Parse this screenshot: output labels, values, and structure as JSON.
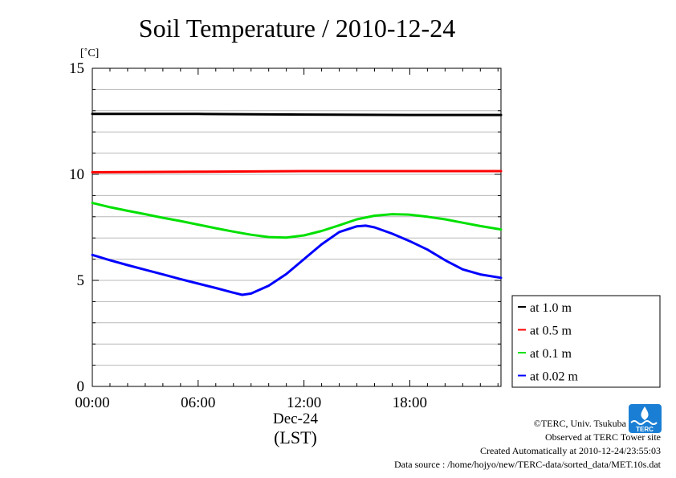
{
  "chart_data": {
    "type": "line",
    "title": "Soil Temperature / 2010-12-24",
    "ylabel": "[˚C]",
    "xlabel": "(LST)",
    "date_label": "Dec-24",
    "ylim": [
      0,
      15
    ],
    "xlim": [
      0,
      23.17
    ],
    "x_unit": "hours (LST)",
    "yticks": [
      0,
      5,
      10,
      15
    ],
    "xticks": [
      {
        "value": 0,
        "label": "00:00"
      },
      {
        "value": 6,
        "label": "06:00"
      },
      {
        "value": 12,
        "label": "12:00"
      },
      {
        "value": 18,
        "label": "18:00"
      }
    ],
    "grid": true,
    "legend_position": "right-bottom",
    "series": [
      {
        "name": "at 1.0 m",
        "color": "#000000",
        "x": [
          0,
          6,
          12,
          18,
          23.17
        ],
        "values": [
          12.85,
          12.85,
          12.82,
          12.8,
          12.8
        ]
      },
      {
        "name": "at 0.5 m",
        "color": "#ff0000",
        "x": [
          0,
          6,
          12,
          18,
          23.17
        ],
        "values": [
          10.1,
          10.12,
          10.15,
          10.15,
          10.15
        ]
      },
      {
        "name": "at 0.1 m",
        "color": "#00e000",
        "x": [
          0,
          1,
          2,
          3,
          4,
          5,
          6,
          7,
          8,
          9,
          10,
          11,
          12,
          13,
          14,
          15,
          16,
          17,
          18,
          19,
          20,
          21,
          22,
          23.17
        ],
        "values": [
          8.65,
          8.45,
          8.28,
          8.12,
          7.95,
          7.8,
          7.63,
          7.46,
          7.3,
          7.15,
          7.04,
          7.02,
          7.12,
          7.33,
          7.6,
          7.88,
          8.05,
          8.12,
          8.1,
          8.0,
          7.88,
          7.72,
          7.56,
          7.4
        ]
      },
      {
        "name": "at 0.02 m",
        "color": "#0000ff",
        "x": [
          0,
          1,
          2,
          3,
          4,
          5,
          6,
          7,
          8,
          8.5,
          9,
          10,
          11,
          12,
          13,
          14,
          15,
          15.5,
          16,
          17,
          18,
          19,
          20,
          21,
          22,
          23.17
        ],
        "values": [
          6.2,
          5.95,
          5.72,
          5.5,
          5.28,
          5.06,
          4.85,
          4.64,
          4.42,
          4.32,
          4.38,
          4.75,
          5.3,
          6.0,
          6.7,
          7.28,
          7.55,
          7.58,
          7.5,
          7.2,
          6.85,
          6.45,
          5.95,
          5.52,
          5.28,
          5.12
        ]
      }
    ]
  },
  "credits": {
    "copyright": "©TERC, Univ. Tsukuba",
    "observed": "Observed at TERC Tower site",
    "created": "Created Automatically at 2010-12-24/23:55:03",
    "source": "Data source : /home/hojyo/new/TERC-data/sorted_data/MET.10s.dat",
    "logo_text": "TERC"
  }
}
